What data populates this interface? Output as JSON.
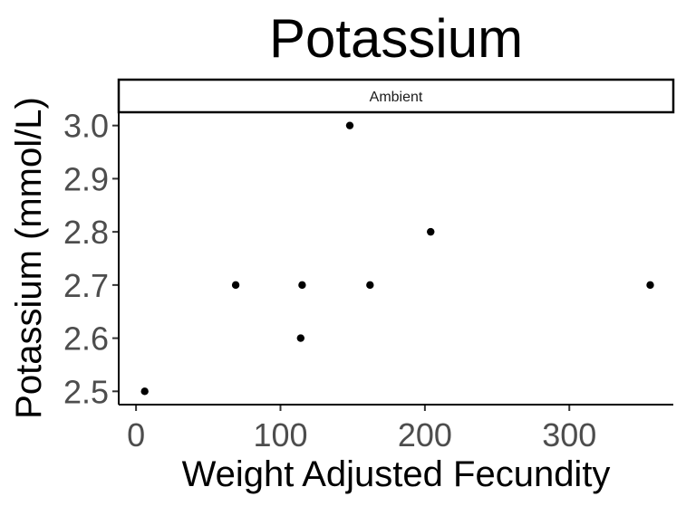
{
  "chart_data": {
    "type": "scatter",
    "title": "Potassium",
    "xlabel": "Weight Adjusted Fecundity",
    "ylabel": "Potassium (mmol/L)",
    "facet_label": "Ambient",
    "xlim": [
      -12,
      372
    ],
    "ylim": [
      2.475,
      3.025
    ],
    "x_ticks": [
      0,
      100,
      200,
      300
    ],
    "y_ticks": [
      2.5,
      2.6,
      2.7,
      2.8,
      2.9,
      3.0
    ],
    "y_tick_labels": [
      "2.5",
      "2.6",
      "2.7",
      "2.8",
      "2.9",
      "3.0"
    ],
    "grid": false,
    "legend": "none",
    "point_color": "#000000",
    "points": [
      {
        "x": 6,
        "y": 2.5
      },
      {
        "x": 69,
        "y": 2.7
      },
      {
        "x": 115,
        "y": 2.7
      },
      {
        "x": 114,
        "y": 2.6
      },
      {
        "x": 148,
        "y": 3.0
      },
      {
        "x": 162,
        "y": 2.7
      },
      {
        "x": 204,
        "y": 2.8
      },
      {
        "x": 356,
        "y": 2.7
      }
    ]
  }
}
